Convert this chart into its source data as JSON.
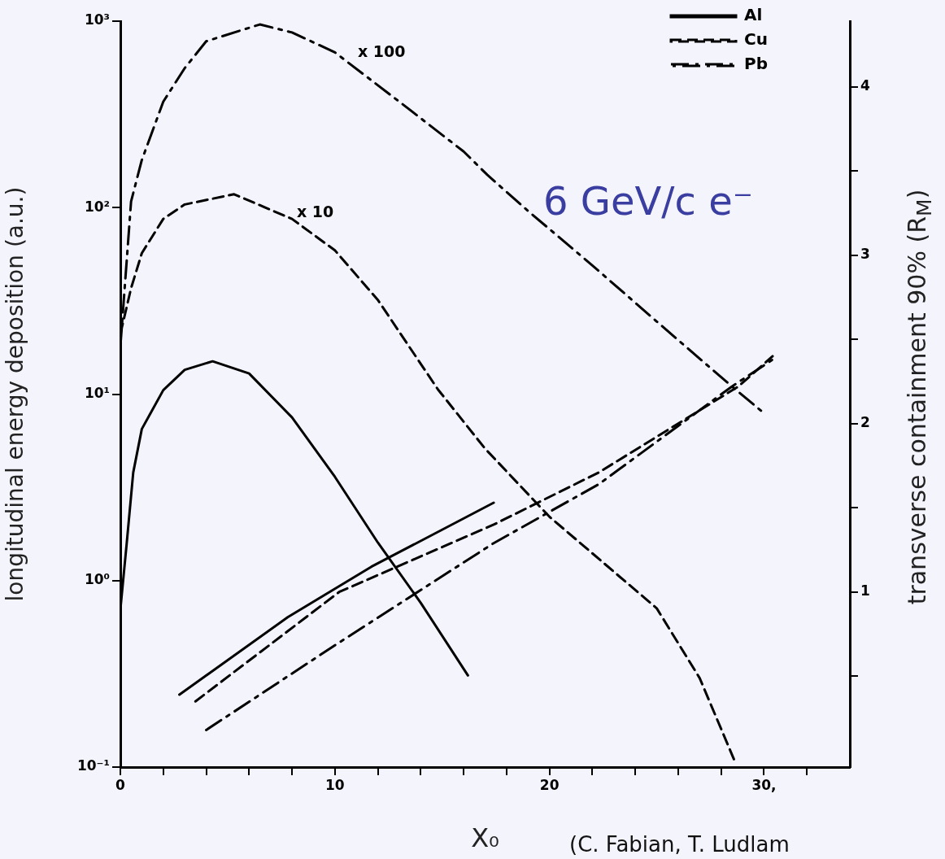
{
  "chart_data": {
    "type": "line",
    "xlabel": "X₀",
    "ylabel": "longitudinal energy deposition (a.u.)",
    "y2label": "transverse containment 90% (R$_{M}$)",
    "xlim": [
      0,
      34
    ],
    "xticks": [
      0,
      {
        "value": 2,
        "label": null
      },
      {
        "value": 4,
        "label": null
      },
      {
        "value": 6,
        "label": null
      },
      {
        "value": 8,
        "label": null
      },
      10,
      {
        "value": 12,
        "label": null
      },
      {
        "value": 14,
        "label": null
      },
      {
        "value": 16,
        "label": null
      },
      {
        "value": 18,
        "label": null
      },
      20,
      {
        "value": 22,
        "label": null
      },
      {
        "value": 24,
        "label": null
      },
      {
        "value": 26,
        "label": null
      },
      {
        "value": 28,
        "label": null
      },
      {
        "value": 30,
        "label": "30,"
      },
      {
        "value": 32,
        "label": null
      }
    ],
    "ylim": [
      0.1,
      1000
    ],
    "log": "y",
    "yticks": [
      {
        "value": 0.1,
        "label": "10⁻¹"
      },
      {
        "value": 1,
        "label": "10⁰"
      },
      {
        "value": 10,
        "label": "10¹"
      },
      {
        "value": 100,
        "label": "10²"
      },
      {
        "value": 1000,
        "label": "10³"
      }
    ],
    "y2lim": [
      -0.04,
      4.39
    ],
    "y2ticks": [
      {
        "value": 0.5,
        "label": null
      },
      1,
      {
        "value": 1.5,
        "label": null
      },
      2,
      {
        "value": 2.5,
        "label": null
      },
      3,
      {
        "value": 3.5,
        "label": null
      },
      4
    ],
    "grid": false,
    "legend": "top right",
    "marker": "none",
    "series": [
      {
        "name": "Al",
        "color": "#000000",
        "line_style": "solid",
        "x": [
          0,
          0.3,
          0.6,
          1,
          2,
          3,
          4.3,
          6,
          8,
          10,
          12,
          14,
          16.2
        ],
        "values": [
          0.7,
          1.6,
          3.8,
          6.5,
          10.5,
          13.5,
          15,
          12.9,
          7.5,
          3.6,
          1.6,
          0.76,
          0.31
        ]
      },
      {
        "name": "Cu",
        "color": "#000000",
        "line_style": "dashed",
        "x": [
          0,
          0.5,
          1,
          2,
          3,
          5.3,
          8,
          10,
          12,
          14.8,
          17,
          20,
          22.5,
          25,
          27,
          28.6
        ],
        "values": [
          21,
          37,
          57,
          87,
          104,
          118,
          87,
          59,
          32,
          10.6,
          5.1,
          2.2,
          1.25,
          0.71,
          0.3,
          0.11
        ]
      },
      {
        "name": "Pb",
        "color": "#000000",
        "line_style": "dashdot",
        "x": [
          0,
          0.5,
          1,
          2,
          3,
          4,
          6.5,
          8,
          10,
          13,
          16,
          17.1,
          19,
          22,
          25,
          28.5,
          30
        ],
        "values": [
          18,
          108,
          180,
          370,
          560,
          780,
          960,
          870,
          680,
          370,
          200,
          150,
          96,
          49,
          24.5,
          11,
          7.9
        ]
      },
      {
        "color": "#000000",
        "line_style": "solid",
        "axis": "y2",
        "x": [
          2.75,
          7.8,
          11.7,
          17.4
        ],
        "values": [
          0.39,
          0.85,
          1.15,
          1.53
        ]
      },
      {
        "color": "#000000",
        "line_style": "dashed",
        "axis": "y2",
        "x": [
          3.5,
          10.2,
          17.4,
          22.3,
          28.8,
          30.4
        ],
        "values": [
          0.35,
          1.0,
          1.4,
          1.71,
          2.22,
          2.4
        ]
      },
      {
        "color": "#000000",
        "line_style": "dashdot",
        "axis": "y2",
        "x": [
          4.0,
          10.2,
          17.4,
          22.3,
          28.5,
          30.4
        ],
        "values": [
          0.18,
          0.7,
          1.29,
          1.64,
          2.22,
          2.38
        ]
      }
    ],
    "annotations": [
      "x 100",
      "x 10",
      "6 GeV/c e⁻",
      "(C. Fabian, T. Ludlam"
    ]
  }
}
